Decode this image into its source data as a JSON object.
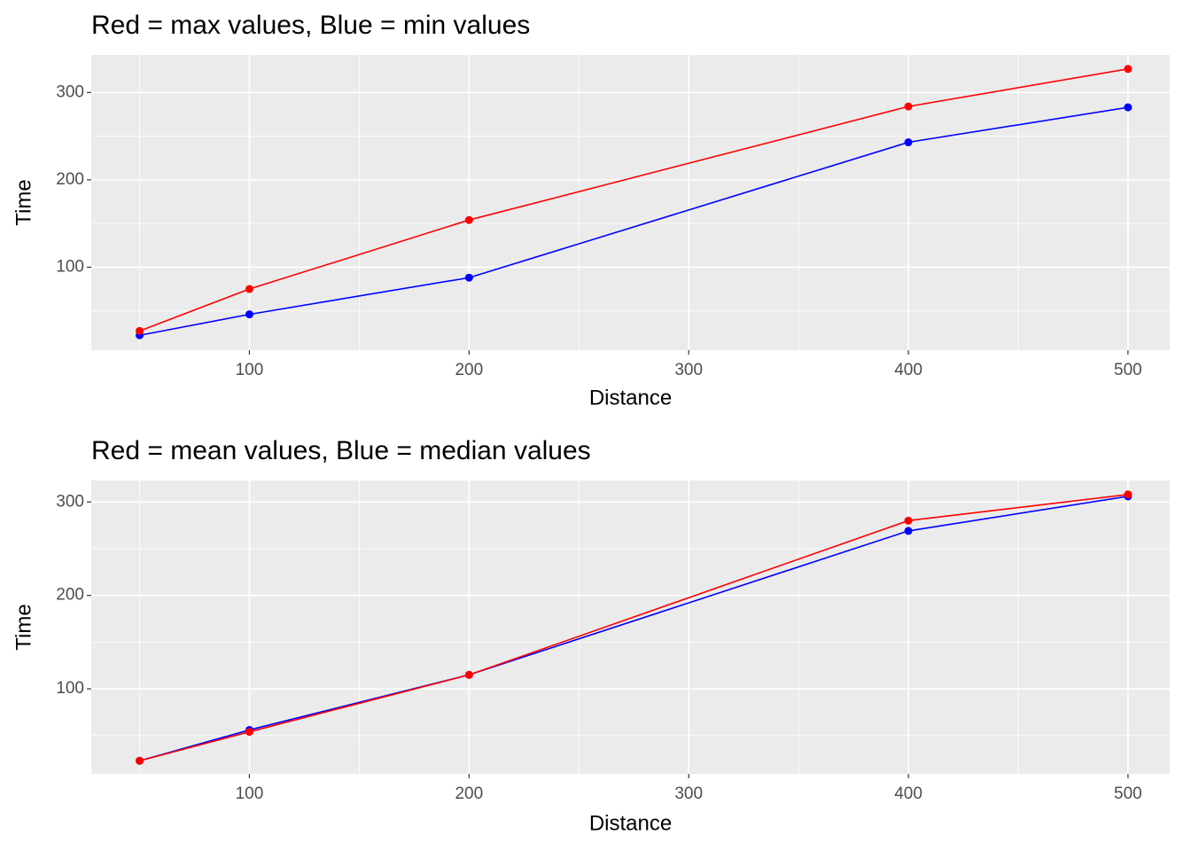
{
  "chart_data": [
    {
      "type": "line",
      "title": "Red = max values, Blue = min values",
      "x_label": "Distance",
      "y_label": "Time",
      "x": [
        50,
        100,
        200,
        400,
        500
      ],
      "series": [
        {
          "color": "#0000FF",
          "values": [
            22,
            46,
            88,
            243,
            283
          ]
        },
        {
          "color": "#FF0000",
          "values": [
            27,
            75,
            154,
            284,
            327
          ]
        }
      ],
      "xlim": [
        28,
        519
      ],
      "xticks": [
        100,
        200,
        300,
        400,
        500
      ],
      "ylim": [
        5,
        343
      ],
      "yticks": [
        100,
        200,
        300
      ],
      "grid": true
    },
    {
      "type": "line",
      "title": "Red = mean values, Blue = median values",
      "x_label": "Distance",
      "y_label": "Time",
      "x": [
        50,
        100,
        200,
        400,
        500
      ],
      "series": [
        {
          "color": "#0000FF",
          "values": [
            23,
            56,
            115,
            269,
            306
          ]
        },
        {
          "color": "#FF0000",
          "values": [
            23,
            54,
            115,
            280,
            308
          ]
        }
      ],
      "xlim": [
        28,
        519
      ],
      "xticks": [
        100,
        200,
        300,
        400,
        500
      ],
      "ylim": [
        9,
        323
      ],
      "yticks": [
        100,
        200,
        300
      ],
      "grid": true
    }
  ]
}
